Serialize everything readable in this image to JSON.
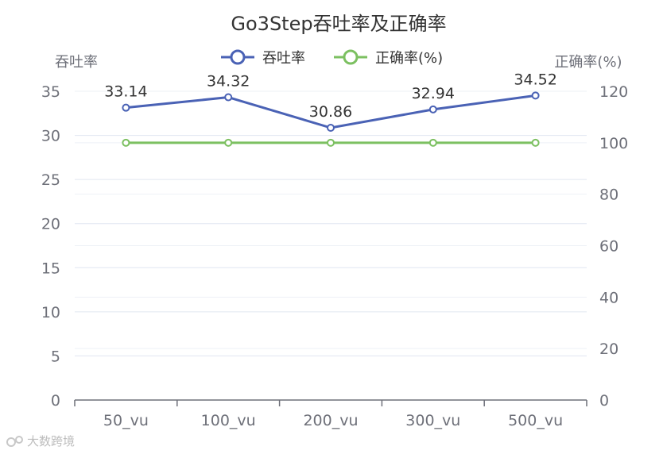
{
  "chart_data": {
    "type": "line",
    "title": "Go3Step吞吐率及正确率",
    "categories": [
      "50_vu",
      "100_vu",
      "200_vu",
      "300_vu",
      "500_vu"
    ],
    "series": [
      {
        "name": "吞吐率",
        "axis": "left",
        "color": "#4a62b5",
        "values": [
          33.14,
          34.32,
          30.86,
          32.94,
          34.52
        ],
        "show_labels": true
      },
      {
        "name": "正确率(%)",
        "axis": "right",
        "color": "#7cc061",
        "values": [
          100,
          100,
          100,
          100,
          100
        ],
        "show_labels": false
      }
    ],
    "y_left": {
      "label": "吞吐率",
      "min": 0,
      "max": 35,
      "ticks": [
        0,
        5,
        10,
        15,
        20,
        25,
        30,
        35
      ]
    },
    "y_right": {
      "label": "正确率(%)",
      "min": 0,
      "max": 120,
      "ticks": [
        0,
        20,
        40,
        60,
        80,
        100,
        120
      ]
    },
    "grid": true,
    "legend_position": "top-center"
  },
  "watermark": {
    "text": "大数跨境"
  }
}
